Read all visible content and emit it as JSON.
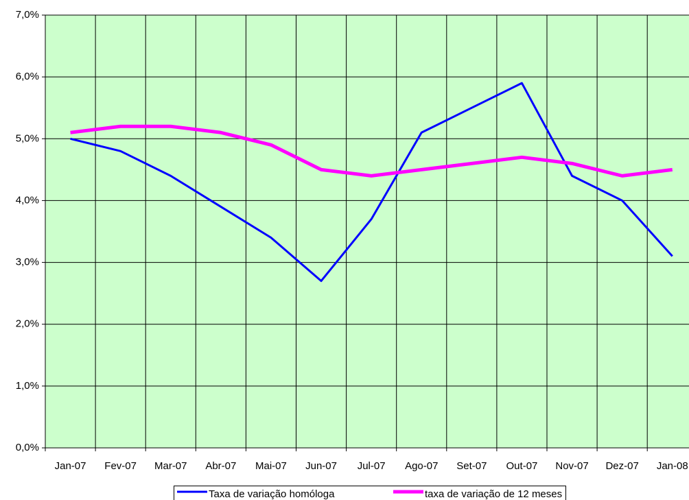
{
  "chart_data": {
    "type": "line",
    "categories": [
      "Jan-07",
      "Fev-07",
      "Mar-07",
      "Abr-07",
      "Mai-07",
      "Jun-07",
      "Jul-07",
      "Ago-07",
      "Set-07",
      "Out-07",
      "Nov-07",
      "Dez-07",
      "Jan-08"
    ],
    "series": [
      {
        "name": "Taxa de variação homóloga",
        "color": "#0000ff",
        "values": [
          5.0,
          4.8,
          4.4,
          3.9,
          3.4,
          2.7,
          3.7,
          5.1,
          5.5,
          5.9,
          4.4,
          4.0,
          3.1
        ]
      },
      {
        "name": "taxa de variação de 12 meses",
        "color": "#ff00ff",
        "values": [
          5.1,
          5.2,
          5.2,
          5.1,
          4.9,
          4.5,
          4.4,
          4.5,
          4.6,
          4.7,
          4.6,
          4.4,
          4.5
        ]
      }
    ],
    "ylim": [
      0,
      7
    ],
    "yticks": [
      {
        "value": 0,
        "label": "0,0%"
      },
      {
        "value": 1,
        "label": "1,0%"
      },
      {
        "value": 2,
        "label": "2,0%"
      },
      {
        "value": 3,
        "label": "3,0%"
      },
      {
        "value": 4,
        "label": "4,0%"
      },
      {
        "value": 5,
        "label": "5,0%"
      },
      {
        "value": 6,
        "label": "6,0%"
      },
      {
        "value": 7,
        "label": "7,0%"
      }
    ],
    "grid": true,
    "plot_background": "#ccffcc",
    "legend": "bottom"
  }
}
